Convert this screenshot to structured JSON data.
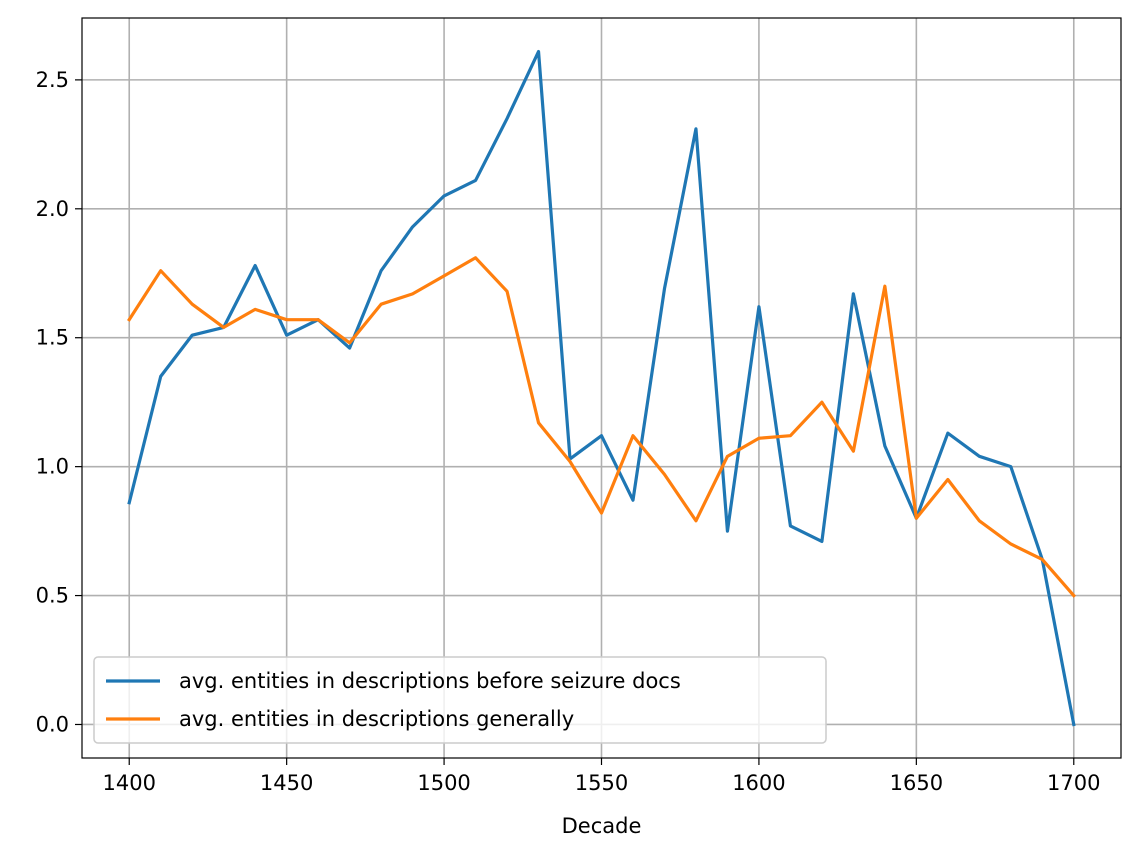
{
  "chart_data": {
    "type": "line",
    "title": "",
    "xlabel": "Decade",
    "ylabel": "",
    "xlim": [
      1385,
      1715
    ],
    "ylim": [
      -0.13,
      2.74
    ],
    "xticks": [
      1400,
      1450,
      1500,
      1550,
      1600,
      1650,
      1700
    ],
    "xtick_labels": [
      "1400",
      "1450",
      "1500",
      "1550",
      "1600",
      "1650",
      "1700"
    ],
    "yticks": [
      0.0,
      0.5,
      1.0,
      1.5,
      2.0,
      2.5
    ],
    "ytick_labels": [
      "0.0",
      "0.5",
      "1.0",
      "1.5",
      "2.0",
      "2.5"
    ],
    "grid": true,
    "legend_position": "lower-left",
    "x": [
      1400,
      1410,
      1420,
      1430,
      1440,
      1450,
      1460,
      1470,
      1480,
      1490,
      1500,
      1510,
      1520,
      1530,
      1540,
      1550,
      1560,
      1570,
      1580,
      1590,
      1600,
      1610,
      1620,
      1630,
      1640,
      1650,
      1660,
      1670,
      1680,
      1690,
      1700
    ],
    "series": [
      {
        "name": "avg. entities in descriptions before seizure docs",
        "color": "#1f77b4",
        "values": [
          0.86,
          1.35,
          1.51,
          1.54,
          1.78,
          1.51,
          1.57,
          1.46,
          1.76,
          1.93,
          2.05,
          2.11,
          2.35,
          2.61,
          1.03,
          1.12,
          0.87,
          1.69,
          2.31,
          0.75,
          1.62,
          0.77,
          0.71,
          1.67,
          1.08,
          0.8,
          1.13,
          1.04,
          1.0,
          0.64,
          0.0
        ]
      },
      {
        "name": "avg. entities in descriptions generally",
        "color": "#ff7f0e",
        "values": [
          1.57,
          1.76,
          1.63,
          1.54,
          1.61,
          1.57,
          1.57,
          1.48,
          1.63,
          1.67,
          1.74,
          1.81,
          1.68,
          1.17,
          1.02,
          0.82,
          1.12,
          0.97,
          0.79,
          1.04,
          1.11,
          1.12,
          1.25,
          1.06,
          1.7,
          0.8,
          0.95,
          0.79,
          0.7,
          0.64,
          0.5
        ]
      }
    ]
  }
}
